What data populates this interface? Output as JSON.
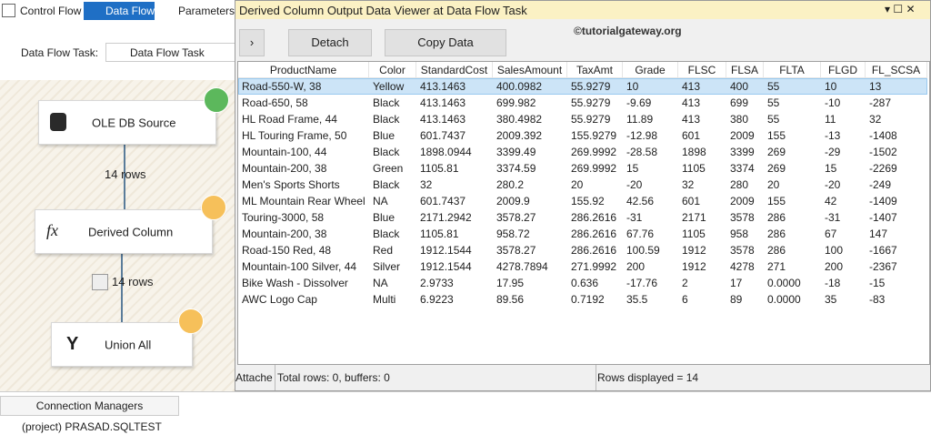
{
  "tabs": [
    "Control Flow",
    "Data Flow",
    "Parameters"
  ],
  "task_label": "Data Flow Task:",
  "task_value": "Data Flow Task",
  "nodes": [
    {
      "label": "OLE DB Source"
    },
    {
      "label": "Derived Column"
    },
    {
      "label": "Union All"
    }
  ],
  "edges": [
    {
      "label": "14 rows"
    },
    {
      "label": "14 rows"
    }
  ],
  "viewer": {
    "title": "Derived Column Output Data Viewer at Data Flow Task",
    "buttons": [
      "Detach",
      "Copy Data"
    ],
    "watermark": "©tutorialgateway.org",
    "table": {
      "columns": [
        "ProductName",
        "Color",
        "StandardCost",
        "SalesAmount",
        "TaxAmt",
        "Grade",
        "FLSC",
        "FLSA",
        "FLTA",
        "FLGD",
        "FL_SCSA"
      ],
      "rows": [
        [
          "Road-550-W, 38",
          "Yellow",
          "413.1463",
          "400.0982",
          "55.9279",
          "10",
          "413",
          "400",
          "55",
          "10",
          "13"
        ],
        [
          "Road-650, 58",
          "Black",
          "413.1463",
          "699.982",
          "55.9279",
          "-9.69",
          "413",
          "699",
          "55",
          "-10",
          "-287"
        ],
        [
          "HL Road Frame, 44",
          "Black",
          "413.1463",
          "380.4982",
          "55.9279",
          "11.89",
          "413",
          "380",
          "55",
          "11",
          "32"
        ],
        [
          "HL Touring Frame, 50",
          "Blue",
          "601.7437",
          "2009.392",
          "155.9279",
          "-12.98",
          "601",
          "2009",
          "155",
          "-13",
          "-1408"
        ],
        [
          "Mountain-100, 44",
          "Black",
          "1898.0944",
          "3399.49",
          "269.9992",
          "-28.58",
          "1898",
          "3399",
          "269",
          "-29",
          "-1502"
        ],
        [
          "Mountain-200, 38",
          "Green",
          "1105.81",
          "3374.59",
          "269.9992",
          "15",
          "1105",
          "3374",
          "269",
          "15",
          "-2269"
        ],
        [
          "Men's Sports Shorts",
          "Black",
          "32",
          "280.2",
          "20",
          "-20",
          "32",
          "280",
          "20",
          "-20",
          "-249"
        ],
        [
          "ML Mountain Rear Wheel",
          "NA",
          "601.7437",
          "2009.9",
          "155.92",
          "42.56",
          "601",
          "2009",
          "155",
          "42",
          "-1409"
        ],
        [
          "Touring-3000, 58",
          "Blue",
          "2171.2942",
          "3578.27",
          "286.2616",
          "-31",
          "2171",
          "3578",
          "286",
          "-31",
          "-1407"
        ],
        [
          "Mountain-200, 38",
          "Black",
          "1105.81",
          "958.72",
          "286.2616",
          "67.76",
          "1105",
          "958",
          "286",
          "67",
          "147"
        ],
        [
          "Road-150 Red, 48",
          "Red",
          "1912.1544",
          "3578.27",
          "286.2616",
          "100.59",
          "1912",
          "3578",
          "286",
          "100",
          "-1667"
        ],
        [
          "Mountain-100 Silver, 44",
          "Silver",
          "1912.1544",
          "4278.7894",
          "271.9992",
          "200",
          "1912",
          "4278",
          "271",
          "200",
          "-2367"
        ],
        [
          "Bike Wash - Dissolver",
          "NA",
          "2.9733",
          "17.95",
          "0.636",
          "-17.76",
          "2",
          "17",
          "0.0000",
          "-18",
          "-15"
        ],
        [
          "AWC Logo Cap",
          "Multi",
          "6.9223",
          "89.56",
          "0.7192",
          "35.5",
          "6",
          "89",
          "0.0000",
          "35",
          "-83"
        ]
      ]
    },
    "status": [
      "Attache",
      "Total rows: 0, buffers: 0",
      "Rows displayed = 14"
    ]
  },
  "bottom": {
    "tab": "Connection Managers",
    "item": "(project) PRASAD.SQLTEST"
  }
}
